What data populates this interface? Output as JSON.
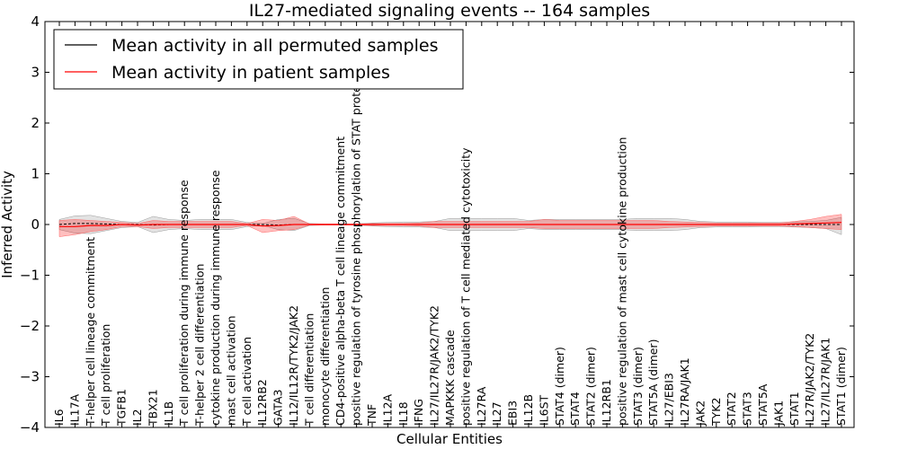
{
  "chart_data": {
    "type": "line",
    "title": "IL27-mediated signaling events -- 164 samples",
    "xlabel": "Cellular Entities",
    "ylabel": "Inferred Activity",
    "ylim": [
      -4,
      4
    ],
    "yticks": [
      -4,
      -3,
      -2,
      -1,
      0,
      1,
      2,
      3,
      4
    ],
    "ytick_labels": [
      "−4",
      "−3",
      "−2",
      "−1",
      "0",
      "1",
      "2",
      "3",
      "4"
    ],
    "legend_position": "top-left",
    "categories": [
      "IL6",
      "IL17A",
      "T-helper cell lineage commitment",
      "T cell proliferation",
      "TGFB1",
      "IL2",
      "TBX21",
      "IL1B",
      "T cell proliferation during immune response",
      "T-helper 2 cell differentiation",
      "cytokine production during immune response",
      "mast cell activation",
      "T cell activation",
      "IL12RB2",
      "GATA3",
      "IL12/IL12R/TYK2/JAK2",
      "T cell differentiation",
      "monocyte differentiation",
      "CD4-positive alpha-beta T cell lineage commitment",
      "positive regulation of tyrosine phosphorylation of STAT protein",
      "TNF",
      "IL12A",
      "IL18",
      "IFNG",
      "IL27/IL27R/JAK2/TYK2",
      "MAPKKK cascade",
      "positive regulation of T cell mediated cytotoxicity",
      "IL27RA",
      "IL27",
      "EBI3",
      "IL12B",
      "IL6ST",
      "STAT4 (dimer)",
      "STAT4",
      "STAT2 (dimer)",
      "IL12RB1",
      "positive regulation of mast cell cytokine production",
      "STAT3 (dimer)",
      "STAT5A (dimer)",
      "IL27/EBI3",
      "IL27RA/JAK1",
      "JAK2",
      "TYK2",
      "STAT2",
      "STAT3",
      "STAT5A",
      "JAK1",
      "STAT1",
      "IL27R/JAK2/TYK2",
      "IL27/IL27R/JAK1",
      "STAT1 (dimer)"
    ],
    "series": [
      {
        "name": "Mean activity in all permuted samples",
        "color": "#000000",
        "values": [
          0,
          0.02,
          0.02,
          0.01,
          0,
          0,
          -0.01,
          0,
          0,
          0,
          0,
          0,
          0,
          0,
          -0.01,
          0,
          0,
          0,
          0,
          0,
          0,
          0,
          0,
          0,
          0,
          0,
          0,
          0,
          0,
          0,
          0,
          0,
          0,
          0,
          0,
          0,
          0,
          0,
          0,
          0,
          0,
          0,
          0,
          0,
          0,
          0,
          0,
          0,
          0,
          0,
          0
        ],
        "band_upper": [
          0.1,
          0.17,
          0.18,
          0.12,
          0.06,
          0.04,
          0.16,
          0.1,
          0.08,
          0.1,
          0.1,
          0.1,
          0.04,
          0.02,
          0.1,
          0.12,
          0.02,
          0.01,
          0.01,
          0.01,
          0.03,
          0.04,
          0.05,
          0.05,
          0.06,
          0.12,
          0.12,
          0.12,
          0.12,
          0.12,
          0.08,
          0.1,
          0.1,
          0.1,
          0.1,
          0.1,
          0.1,
          0.12,
          0.12,
          0.12,
          0.1,
          0.06,
          0.05,
          0.05,
          0.05,
          0.04,
          0.04,
          0.05,
          0.06,
          0.08,
          0.14
        ],
        "band_lower": [
          -0.1,
          -0.17,
          -0.18,
          -0.12,
          -0.06,
          -0.04,
          -0.16,
          -0.1,
          -0.08,
          -0.1,
          -0.1,
          -0.1,
          -0.04,
          -0.02,
          -0.1,
          -0.12,
          -0.02,
          -0.01,
          -0.01,
          -0.01,
          -0.03,
          -0.04,
          -0.05,
          -0.05,
          -0.06,
          -0.12,
          -0.12,
          -0.12,
          -0.12,
          -0.12,
          -0.08,
          -0.1,
          -0.1,
          -0.1,
          -0.1,
          -0.1,
          -0.1,
          -0.12,
          -0.12,
          -0.12,
          -0.1,
          -0.06,
          -0.05,
          -0.05,
          -0.05,
          -0.04,
          -0.04,
          -0.05,
          -0.06,
          -0.08,
          -0.2
        ]
      },
      {
        "name": "Mean activity in patient samples",
        "color": "#ff0000",
        "values": [
          -0.04,
          -0.04,
          -0.02,
          -0.02,
          0,
          -0.01,
          0,
          0,
          0,
          0,
          0,
          0,
          0,
          -0.03,
          -0.02,
          0,
          0,
          0,
          0,
          0,
          0,
          0,
          0,
          0,
          0,
          0,
          0,
          0,
          0,
          0,
          0,
          0,
          0,
          0,
          0,
          0,
          0,
          0,
          0,
          0,
          0,
          0,
          0,
          0,
          0,
          0,
          0,
          0.01,
          0.02,
          0.03,
          0.04
        ],
        "band_upper": [
          0.08,
          0.1,
          0.08,
          0.06,
          0.04,
          0.02,
          0.08,
          0.06,
          0.06,
          0.06,
          0.06,
          0.06,
          0.02,
          0.1,
          0.08,
          0.16,
          0.01,
          0.01,
          0.01,
          0.01,
          0.02,
          0.02,
          0.02,
          0.03,
          0.06,
          0.06,
          0.06,
          0.06,
          0.06,
          0.06,
          0.06,
          0.1,
          0.08,
          0.08,
          0.08,
          0.08,
          0.08,
          0.08,
          0.08,
          0.06,
          0.05,
          0.04,
          0.03,
          0.03,
          0.03,
          0.03,
          0.03,
          0.06,
          0.1,
          0.16,
          0.2
        ],
        "band_lower": [
          -0.24,
          -0.2,
          -0.14,
          -0.1,
          -0.04,
          -0.04,
          -0.08,
          -0.06,
          -0.06,
          -0.06,
          -0.06,
          -0.06,
          -0.02,
          -0.16,
          -0.12,
          -0.1,
          -0.01,
          -0.01,
          -0.01,
          -0.01,
          -0.02,
          -0.02,
          -0.02,
          -0.03,
          -0.06,
          -0.06,
          -0.06,
          -0.06,
          -0.06,
          -0.06,
          -0.06,
          -0.08,
          -0.08,
          -0.08,
          -0.08,
          -0.08,
          -0.08,
          -0.08,
          -0.08,
          -0.06,
          -0.05,
          -0.04,
          -0.03,
          -0.03,
          -0.03,
          -0.03,
          -0.03,
          -0.04,
          -0.06,
          -0.08,
          -0.1
        ]
      }
    ]
  }
}
